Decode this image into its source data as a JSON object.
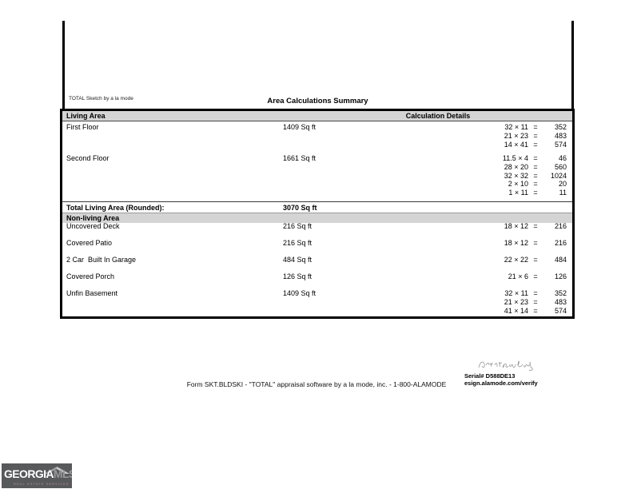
{
  "page": {
    "sketch_app_label": "TOTAL Sketch by a la mode",
    "summary_title": "Area Calculations Summary"
  },
  "table": {
    "living_header": "Living Area",
    "calc_header": "Calculation Details",
    "living_rows": [
      {
        "name": "First Floor",
        "area": "1409 Sq ft",
        "calcs": [
          {
            "expr": "32 × 11",
            "eq": "=",
            "result": "352"
          },
          {
            "expr": "21 × 23",
            "eq": "=",
            "result": "483"
          },
          {
            "expr": "14 × 41",
            "eq": "=",
            "result": "574"
          }
        ]
      },
      {
        "name": "Second Floor",
        "area": "1661 Sq ft",
        "calcs": [
          {
            "expr": "11.5 × 4",
            "eq": "=",
            "result": "46"
          },
          {
            "expr": "28 × 20",
            "eq": "=",
            "result": "560"
          },
          {
            "expr": "32 × 32",
            "eq": "=",
            "result": "1024"
          },
          {
            "expr": "2 × 10",
            "eq": "=",
            "result": "20"
          },
          {
            "expr": "1 × 11",
            "eq": "=",
            "result": "11"
          }
        ]
      }
    ],
    "total_label": "Total Living Area (Rounded):",
    "total_value": "3070 Sq ft",
    "nonliving_header": "Non-living Area",
    "nonliving_rows": [
      {
        "name": "Uncovered Deck",
        "area": "216 Sq ft",
        "calcs": [
          {
            "expr": "18 × 12",
            "eq": "=",
            "result": "216"
          }
        ]
      },
      {
        "name": "Covered Patio",
        "area": "216 Sq ft",
        "calcs": [
          {
            "expr": "18 × 12",
            "eq": "=",
            "result": "216"
          }
        ]
      },
      {
        "name": "2 Car  Built In Garage",
        "area": "484 Sq ft",
        "calcs": [
          {
            "expr": "22 × 22",
            "eq": "=",
            "result": "484"
          }
        ]
      },
      {
        "name": "Covered Porch",
        "area": "126 Sq ft",
        "calcs": [
          {
            "expr": "21 × 6",
            "eq": "=",
            "result": "126"
          }
        ]
      },
      {
        "name": "Unfin Basement",
        "area": "1409 Sq ft",
        "calcs": [
          {
            "expr": "32 × 11",
            "eq": "=",
            "result": "352"
          },
          {
            "expr": "21 × 23",
            "eq": "=",
            "result": "483"
          },
          {
            "expr": "41 × 14",
            "eq": "=",
            "result": "574"
          }
        ]
      }
    ]
  },
  "footer": {
    "form_line": "Form SKT.BLDSKI - \"TOTAL\" appraisal software by a la mode, inc. - 1-800-ALAMODE",
    "serial": "Serial# D588DE13",
    "verify_url": "esign.alamode.com/verify"
  },
  "logo": {
    "name_primary": "GEORGIA",
    "name_secondary": "MLS",
    "tagline": "REAL ESTATE SERVICES"
  },
  "colors": {
    "band_gray": "#d4d4d4",
    "table_border": "#000000",
    "logo_background": "#58595b",
    "logo_mls_gray": "#97999c",
    "logo_tagline_red": "#b19090",
    "signature_gray": "#8a8a8a"
  }
}
